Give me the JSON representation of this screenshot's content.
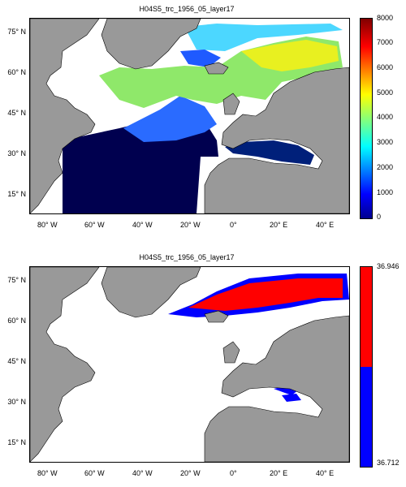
{
  "panels": [
    {
      "title": "H04S5_trc_1956_05_layer17",
      "colorbar": {
        "type": "continuous",
        "colormap": "jet",
        "min": 0,
        "max": 8000,
        "ticks": [
          "0",
          "1000",
          "2000",
          "3000",
          "4000",
          "5000",
          "6000",
          "7000",
          "8000"
        ]
      }
    },
    {
      "title": "H04S5_trc_1956_05_layer17",
      "colorbar": {
        "type": "two-class",
        "colors": [
          "#0000ff",
          "#ff0000"
        ],
        "ticks": [
          "36.712",
          "36.946"
        ]
      }
    }
  ],
  "axes": {
    "y_ticks": [
      "75° N",
      "60° N",
      "45° N",
      "30° N",
      "15° N"
    ],
    "x_ticks": [
      "80° W",
      "60° W",
      "40° W",
      "20° W",
      "0°",
      "20° E",
      "40° E"
    ]
  },
  "colors": {
    "land": "#999999",
    "ocean_background": "#ffffff"
  }
}
